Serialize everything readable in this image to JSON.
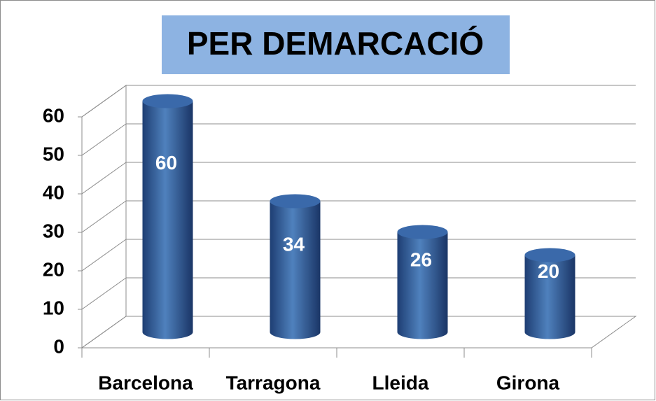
{
  "chart_data": {
    "type": "bar",
    "title": "PER DEMARCACIÓ",
    "categories": [
      "Barcelona",
      "Tarragona",
      "Lleida",
      "Girona"
    ],
    "values": [
      60,
      34,
      26,
      20
    ],
    "color": "#4f81bd",
    "ylim": [
      0,
      60
    ],
    "yticks": [
      0,
      10,
      20,
      30,
      40,
      50,
      60
    ],
    "grid": true
  }
}
